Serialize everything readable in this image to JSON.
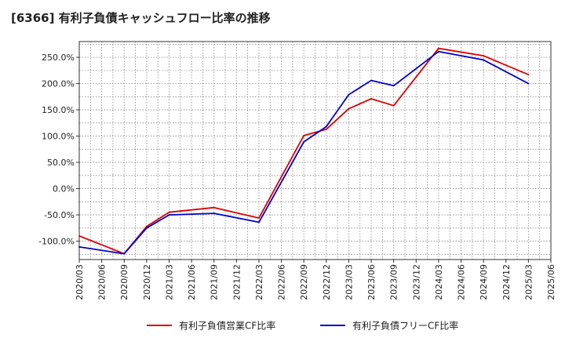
{
  "chart_data": {
    "type": "line",
    "title": "[6366]  有利子負債キャッシュフロー比率の推移",
    "xlabel": "",
    "ylabel": "",
    "ylim": [
      -135,
      280
    ],
    "y_ticks": [
      250,
      200,
      150,
      100,
      50,
      0,
      -50,
      -100
    ],
    "y_tick_labels": [
      "250.0%",
      "200.0%",
      "150.0%",
      "100.0%",
      "50.0%",
      "0.0%",
      "-50.0%",
      "-100.0%"
    ],
    "categories": [
      "2020/03",
      "2020/06",
      "2020/09",
      "2020/12",
      "2021/03",
      "2021/06",
      "2021/09",
      "2021/12",
      "2022/03",
      "2022/06",
      "2022/09",
      "2022/12",
      "2023/03",
      "2023/06",
      "2023/09",
      "2023/12",
      "2024/03",
      "2024/06",
      "2024/09",
      "2024/12",
      "2025/03",
      "2025/06"
    ],
    "grid": true,
    "legend_position": "bottom",
    "series": [
      {
        "name": "有利子負債営業CF比率",
        "color": "#dd0000",
        "values": [
          -90,
          null,
          -124,
          -72,
          -45,
          null,
          -36,
          null,
          -56,
          null,
          101,
          113,
          152,
          171,
          158,
          null,
          267,
          null,
          253,
          null,
          217,
          null
        ]
      },
      {
        "name": "有利子負債フリーCF比率",
        "color": "#0000cc",
        "values": [
          -111,
          null,
          -124,
          -75,
          -50,
          null,
          -47,
          null,
          -64,
          null,
          89,
          118,
          179,
          206,
          196,
          null,
          261,
          null,
          245,
          null,
          200,
          null
        ]
      }
    ]
  }
}
